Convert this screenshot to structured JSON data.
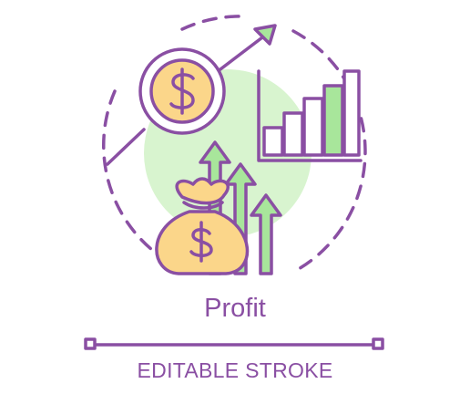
{
  "caption": {
    "title": "Profit",
    "subtitle": "EDITABLE STROKE"
  },
  "icons": [
    "dollar-coin-icon",
    "money-bag-icon",
    "bar-chart-icon",
    "growth-arrows-icon",
    "trend-arrow-icon"
  ],
  "colors": {
    "stroke": "#8a4fa3",
    "accent_green": "#a8e69b",
    "glow_green": "#d8f4cf",
    "coin_yellow": "#fbd68a",
    "bag_yellow": "#fbd68a"
  }
}
